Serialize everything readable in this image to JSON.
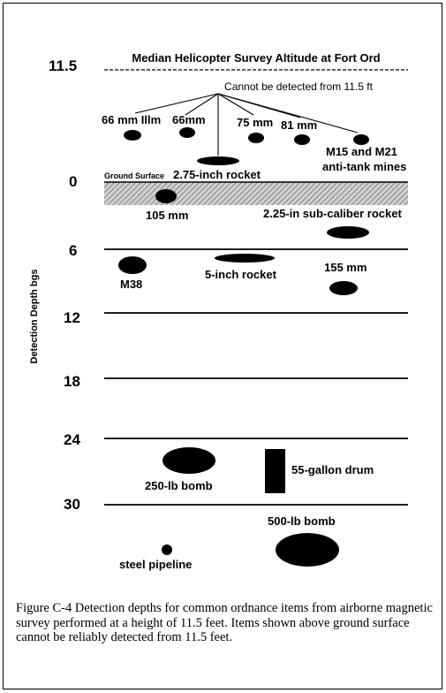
{
  "diagram": {
    "survey_title": "Median Helicopter Survey Altitude at Fort Ord",
    "detect_note": "Cannot be detected from 11.5 ft",
    "ground_surface_label": "Ground Surface",
    "y_axis_label": "Detection Depth bgs",
    "depth_ticks": [
      "11.5",
      "0",
      "6",
      "12",
      "18",
      "24",
      "30"
    ],
    "items_above": [
      {
        "label": "66 mm Illm"
      },
      {
        "label": "66mm"
      },
      {
        "label": "75 mm"
      },
      {
        "label": "81 mm"
      },
      {
        "label": "2.75-inch rocket"
      },
      {
        "label": "M15 and M21"
      },
      {
        "label": "anti-tank mines"
      }
    ],
    "items_below": [
      {
        "label": "105 mm"
      },
      {
        "label": "2.25-in sub-caliber rocket"
      },
      {
        "label": "M38"
      },
      {
        "label": "5-inch rocket"
      },
      {
        "label": "155 mm"
      },
      {
        "label": "250-lb bomb"
      },
      {
        "label": "55-gallon drum"
      },
      {
        "label": "500-lb bomb"
      },
      {
        "label": "steel pipeline"
      }
    ]
  },
  "caption": "Figure C-4    Detection depths for common ordnance items from airborne magnetic survey performed at a height of 11.5 feet. Items shown above ground surface cannot be reliably detected from 11.5 feet."
}
